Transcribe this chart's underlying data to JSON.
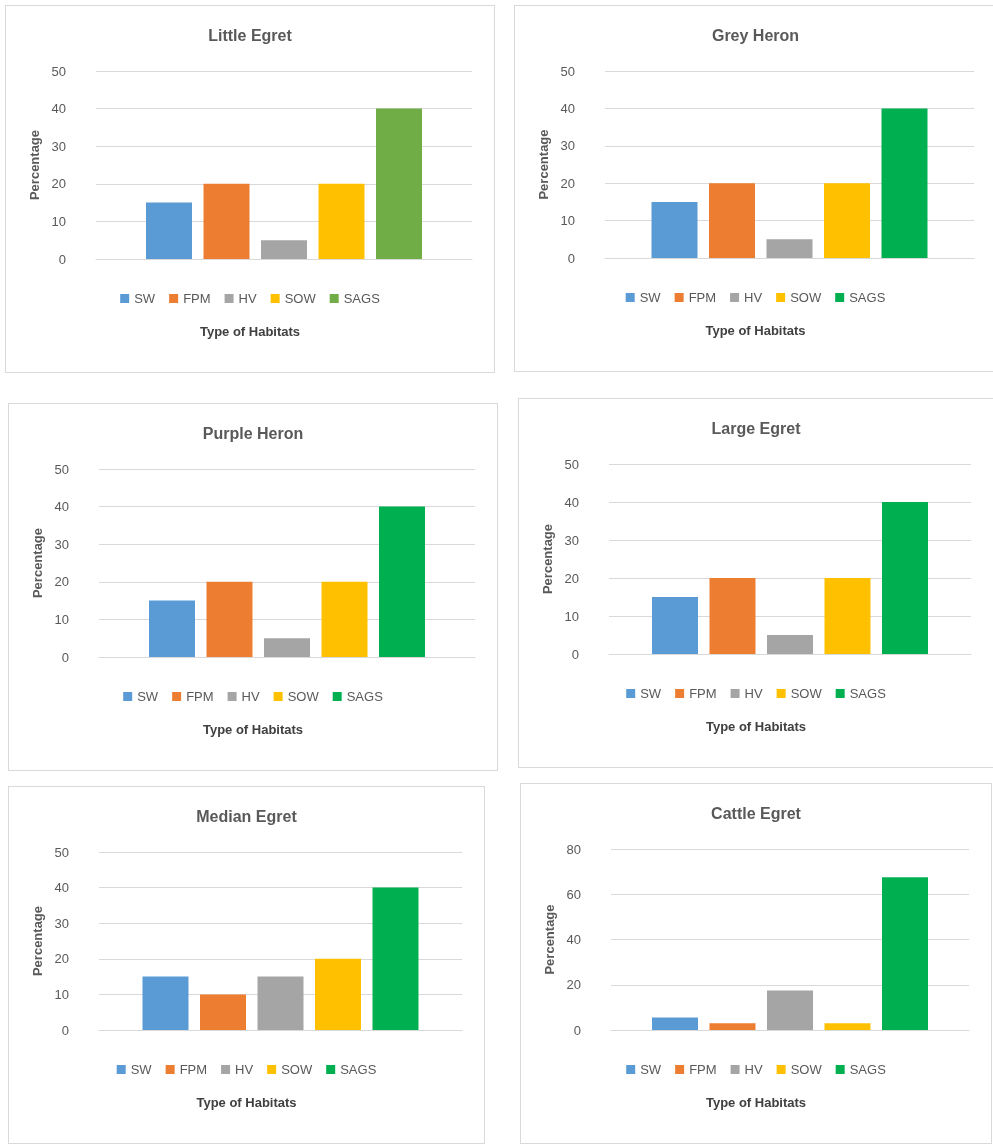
{
  "chart_data": [
    {
      "type": "bar",
      "title": "Little Egret",
      "xlabel": "Type of Habitats",
      "ylabel": "Percentage",
      "categories": [
        null
      ],
      "ylim": [
        0,
        50
      ],
      "yticks": [
        0,
        10,
        20,
        30,
        40,
        50
      ],
      "grid": "y",
      "legend": "bottom",
      "series": [
        {
          "name": "SW",
          "color": "#5b9bd5",
          "values": [
            15
          ]
        },
        {
          "name": "FPM",
          "color": "#ed7d31",
          "values": [
            20
          ]
        },
        {
          "name": "HV",
          "color": "#a5a5a5",
          "values": [
            5
          ]
        },
        {
          "name": "SOW",
          "color": "#ffc000",
          "values": [
            20
          ]
        },
        {
          "name": "SAGS",
          "color": "#70ad47",
          "values": [
            40
          ]
        }
      ]
    },
    {
      "type": "bar",
      "title": "Grey Heron",
      "xlabel": "Type of Habitats",
      "ylabel": "Percentage",
      "categories": [
        null
      ],
      "ylim": [
        0,
        50
      ],
      "yticks": [
        0,
        10,
        20,
        30,
        40,
        50
      ],
      "grid": "y",
      "legend": "bottom",
      "series": [
        {
          "name": "SW",
          "color": "#5b9bd5",
          "values": [
            15
          ]
        },
        {
          "name": "FPM",
          "color": "#ed7d31",
          "values": [
            20
          ]
        },
        {
          "name": "HV",
          "color": "#a5a5a5",
          "values": [
            5
          ]
        },
        {
          "name": "SOW",
          "color": "#ffc000",
          "values": [
            20
          ]
        },
        {
          "name": "SAGS",
          "color": "#00b050",
          "values": [
            40
          ]
        }
      ]
    },
    {
      "type": "bar",
      "title": "Purple Heron",
      "xlabel": "Type of Habitats",
      "ylabel": "Percentage",
      "categories": [
        null
      ],
      "ylim": [
        0,
        50
      ],
      "yticks": [
        0,
        10,
        20,
        30,
        40,
        50
      ],
      "grid": "y",
      "legend": "bottom",
      "series": [
        {
          "name": "SW",
          "color": "#5b9bd5",
          "values": [
            15
          ]
        },
        {
          "name": "FPM",
          "color": "#ed7d31",
          "values": [
            20
          ]
        },
        {
          "name": "HV",
          "color": "#a5a5a5",
          "values": [
            5
          ]
        },
        {
          "name": "SOW",
          "color": "#ffc000",
          "values": [
            20
          ]
        },
        {
          "name": "SAGS",
          "color": "#00b050",
          "values": [
            40
          ]
        }
      ]
    },
    {
      "type": "bar",
      "title": "Large Egret",
      "xlabel": "Type of Habitats",
      "ylabel": "Percentage",
      "categories": [
        null
      ],
      "ylim": [
        0,
        50
      ],
      "yticks": [
        0,
        10,
        20,
        30,
        40,
        50
      ],
      "grid": "y",
      "legend": "bottom",
      "series": [
        {
          "name": "SW",
          "color": "#5b9bd5",
          "values": [
            15
          ]
        },
        {
          "name": "FPM",
          "color": "#ed7d31",
          "values": [
            20
          ]
        },
        {
          "name": "HV",
          "color": "#a5a5a5",
          "values": [
            5
          ]
        },
        {
          "name": "SOW",
          "color": "#ffc000",
          "values": [
            20
          ]
        },
        {
          "name": "SAGS",
          "color": "#00b050",
          "values": [
            40
          ]
        }
      ]
    },
    {
      "type": "bar",
      "title": "Median Egret",
      "xlabel": "Type of Habitats",
      "ylabel": "Percentage",
      "categories": [
        null
      ],
      "ylim": [
        0,
        50
      ],
      "yticks": [
        0,
        10,
        20,
        30,
        40,
        50
      ],
      "grid": "y",
      "legend": "bottom",
      "series": [
        {
          "name": "SW",
          "color": "#5b9bd5",
          "values": [
            15
          ]
        },
        {
          "name": "FPM",
          "color": "#ed7d31",
          "values": [
            10
          ]
        },
        {
          "name": "HV",
          "color": "#a5a5a5",
          "values": [
            15
          ]
        },
        {
          "name": "SOW",
          "color": "#ffc000",
          "values": [
            20
          ]
        },
        {
          "name": "SAGS",
          "color": "#00b050",
          "values": [
            40
          ]
        }
      ]
    },
    {
      "type": "bar",
      "title": "Cattle Egret",
      "xlabel": "Type of Habitats",
      "ylabel": "Percentage",
      "categories": [
        null
      ],
      "ylim": [
        0,
        80
      ],
      "yticks": [
        0,
        20,
        40,
        60,
        80
      ],
      "grid": "y",
      "legend": "bottom",
      "series": [
        {
          "name": "SW",
          "color": "#5b9bd5",
          "values": [
            5.5
          ]
        },
        {
          "name": "FPM",
          "color": "#ed7d31",
          "values": [
            3
          ]
        },
        {
          "name": "HV",
          "color": "#a5a5a5",
          "values": [
            17.5
          ]
        },
        {
          "name": "SOW",
          "color": "#ffc000",
          "values": [
            3
          ]
        },
        {
          "name": "SAGS",
          "color": "#00b050",
          "values": [
            67.5
          ]
        }
      ]
    }
  ]
}
